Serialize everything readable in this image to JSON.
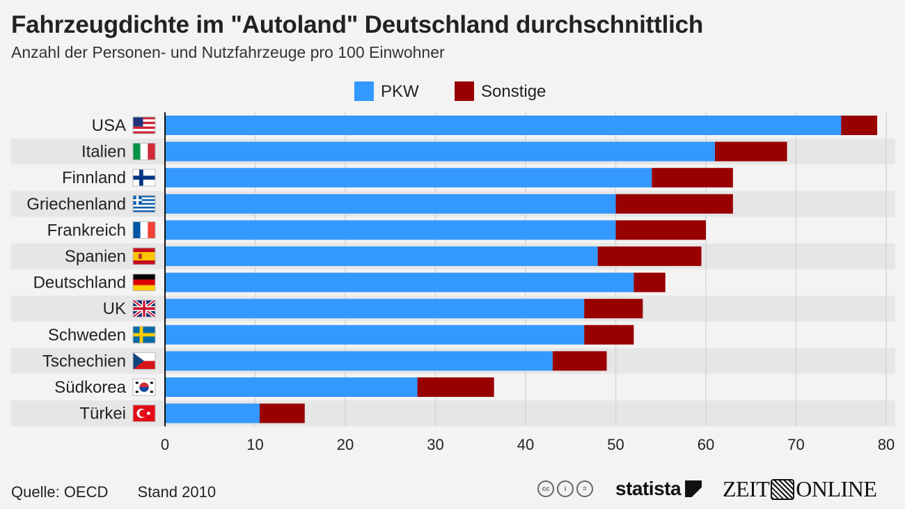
{
  "header": {
    "title": "Fahrzeugdichte im \"Autoland\" Deutschland durchschnittlich",
    "subtitle": "Anzahl der Personen- und Nutzfahrzeuge pro 100 Einwohner"
  },
  "footer": {
    "source": "Quelle: OECD",
    "date": "Stand 2010",
    "license_icons": [
      "cc-icon",
      "by-icon",
      "nd-icon"
    ],
    "brand_statista": "statista",
    "brand_zeit_left": "ZEIT",
    "brand_zeit_right": "ONLINE"
  },
  "colors": {
    "pkw": "#3399ff",
    "sonstige": "#990000",
    "band": "#e6e6e6",
    "grid": "#d6d6d6"
  },
  "chart_data": {
    "type": "bar",
    "orientation": "horizontal",
    "stacked": true,
    "title": "Fahrzeugdichte im \"Autoland\" Deutschland durchschnittlich",
    "subtitle": "Anzahl der Personen- und Nutzfahrzeuge pro 100 Einwohner",
    "legend_position": "top-center",
    "grid": true,
    "xlim": [
      0,
      80
    ],
    "x_ticks": [
      "0",
      "10",
      "20",
      "30",
      "40",
      "50",
      "60",
      "70",
      "80"
    ],
    "categories": [
      "USA",
      "Italien",
      "Finnland",
      "Griechenland",
      "Frankreich",
      "Spanien",
      "Deutschland",
      "UK",
      "Schweden",
      "Tschechien",
      "Südkorea",
      "Türkei"
    ],
    "flags": [
      "us",
      "it",
      "fi",
      "gr",
      "fr",
      "es",
      "de",
      "gb",
      "se",
      "cz",
      "kr",
      "tr"
    ],
    "series": [
      {
        "name": "PKW",
        "values": [
          75,
          61,
          54,
          50,
          50,
          48,
          52,
          46.5,
          46.5,
          43,
          28,
          10.5
        ]
      },
      {
        "name": "Sonstige",
        "values": [
          4,
          8,
          9,
          13,
          10,
          11.5,
          3.5,
          6.5,
          5.5,
          6,
          8.5,
          5
        ]
      }
    ]
  }
}
